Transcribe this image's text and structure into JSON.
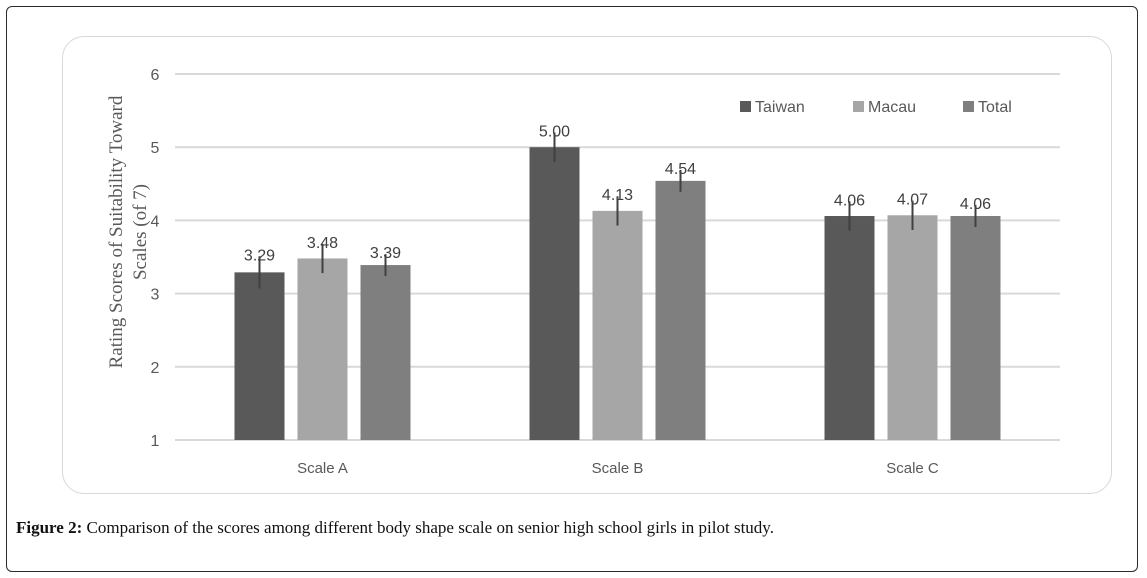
{
  "caption": {
    "label": "Figure 2:",
    "text": " Comparison of the scores among different body shape scale on senior high school girls in pilot study."
  },
  "chart_data": {
    "type": "bar",
    "title": "",
    "xlabel": "",
    "ylabel": "Rating Scores of Suitability Toward Scales (of 7)",
    "ylabel_lines": [
      "Rating Scores of Suitability Toward",
      "Scales (of 7)"
    ],
    "ylim": [
      1,
      6
    ],
    "yticks": [
      1,
      2,
      3,
      4,
      5,
      6
    ],
    "grid": true,
    "legend_position": "top-right",
    "categories": [
      "Scale A",
      "Scale B",
      "Scale C"
    ],
    "series": [
      {
        "name": "Taiwan",
        "color": "#595959",
        "values": [
          3.29,
          5.0,
          4.06
        ],
        "labels": [
          "3.29",
          "5.00",
          "4.06"
        ],
        "error": [
          0.22,
          0.2,
          0.2
        ]
      },
      {
        "name": "Macau",
        "color": "#a6a6a6",
        "values": [
          3.48,
          4.13,
          4.07
        ],
        "labels": [
          "3.48",
          "4.13",
          "4.07"
        ],
        "error": [
          0.2,
          0.2,
          0.2
        ]
      },
      {
        "name": "Total",
        "color": "#7f7f7f",
        "values": [
          3.39,
          4.54,
          4.06
        ],
        "labels": [
          "3.39",
          "4.54",
          "4.06"
        ],
        "error": [
          0.15,
          0.15,
          0.15
        ]
      }
    ]
  }
}
